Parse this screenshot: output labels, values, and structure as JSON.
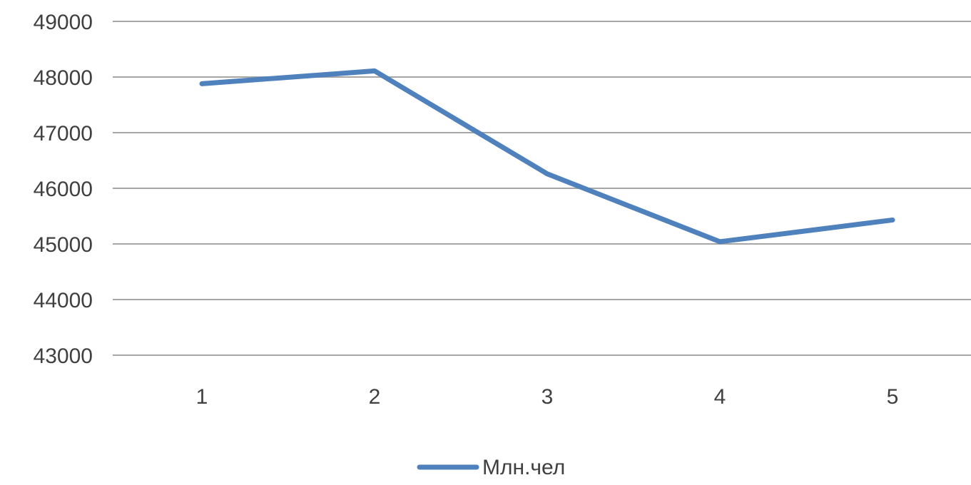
{
  "chart_data": {
    "type": "line",
    "title": "",
    "xlabel": "",
    "ylabel": "",
    "categories": [
      "1",
      "2",
      "3",
      "4",
      "5"
    ],
    "series": [
      {
        "name": "Млн.чел",
        "values": [
          47880,
          48110,
          46260,
          45040,
          45430
        ],
        "color": "#4f81bd"
      }
    ],
    "ylim": [
      43000,
      49000
    ],
    "yticks": [
      49000,
      48000,
      47000,
      46000,
      45000,
      44000,
      43000
    ],
    "grid": true,
    "gridline_color": "#a6a6a6",
    "legend_position": "bottom"
  }
}
